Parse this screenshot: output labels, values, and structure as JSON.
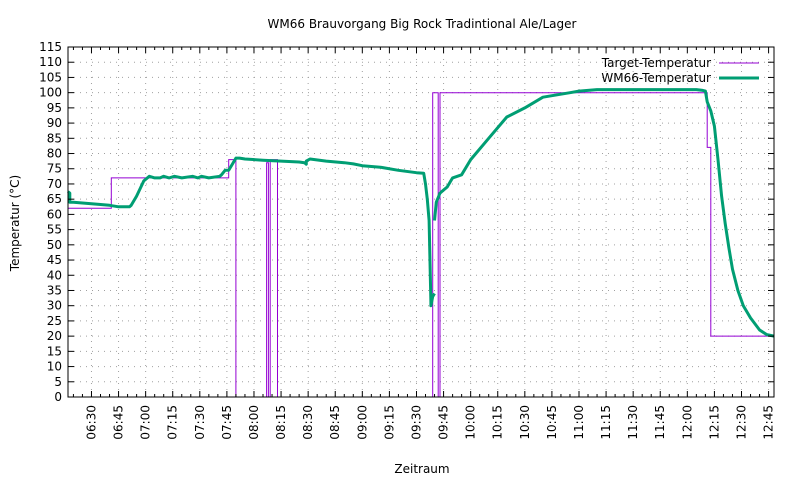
{
  "chart_data": {
    "type": "line",
    "title": "WM66 Brauvorgang Big Rock Tradintional Ale/Lager",
    "xlabel": "Zeitraum",
    "ylabel": "Temperatur (°C)",
    "ylim": [
      0,
      115
    ],
    "yticks": [
      0,
      5,
      10,
      15,
      20,
      25,
      30,
      35,
      40,
      45,
      50,
      55,
      60,
      65,
      70,
      75,
      80,
      85,
      90,
      95,
      100,
      105,
      110,
      115
    ],
    "xlim": [
      "06:17",
      "12:48"
    ],
    "xticks": [
      "06:30",
      "06:45",
      "07:00",
      "07:15",
      "07:30",
      "07:45",
      "08:00",
      "08:15",
      "08:30",
      "08:45",
      "09:00",
      "09:15",
      "09:30",
      "09:45",
      "10:00",
      "10:15",
      "10:30",
      "10:45",
      "11:00",
      "11:15",
      "11:30",
      "11:45",
      "12:00",
      "12:15",
      "12:30",
      "12:45"
    ],
    "grid": true,
    "legend": "top-right",
    "series": [
      {
        "name": "Target-Temperatur",
        "color": "#9400d3",
        "style": "step",
        "points": [
          [
            "06:17",
            62
          ],
          [
            "06:41",
            62
          ],
          [
            "06:41",
            72
          ],
          [
            "07:46",
            72
          ],
          [
            "07:46",
            78
          ],
          [
            "07:50",
            78
          ],
          [
            "07:50",
            0
          ],
          [
            "08:07",
            0
          ],
          [
            "08:07",
            77
          ],
          [
            "08:08",
            77
          ],
          [
            "08:08",
            0
          ],
          [
            "08:09",
            0
          ],
          [
            "08:09",
            78
          ],
          [
            "08:13",
            78
          ],
          [
            "08:13",
            0
          ],
          [
            "09:39",
            0
          ],
          [
            "09:39",
            100
          ],
          [
            "09:42",
            100
          ],
          [
            "09:42",
            0
          ],
          [
            "09:43",
            0
          ],
          [
            "09:43",
            100
          ],
          [
            "12:11",
            100
          ],
          [
            "12:11",
            82
          ],
          [
            "12:13",
            82
          ],
          [
            "12:13",
            20
          ],
          [
            "12:48",
            20
          ]
        ]
      },
      {
        "name": "WM66-Temperatur",
        "color": "#009e73",
        "style": "line",
        "points": [
          [
            "06:17",
            67.5
          ],
          [
            "06:18",
            67
          ],
          [
            "06:18",
            64
          ],
          [
            "06:20",
            64
          ],
          [
            "06:30",
            63.5
          ],
          [
            "06:40",
            63
          ],
          [
            "06:45",
            62.5
          ],
          [
            "06:51",
            62.5
          ],
          [
            "06:52",
            63
          ],
          [
            "06:55",
            66
          ],
          [
            "06:59",
            71
          ],
          [
            "07:02",
            72.5
          ],
          [
            "07:05",
            72
          ],
          [
            "07:08",
            72
          ],
          [
            "07:10",
            72.5
          ],
          [
            "07:13",
            72
          ],
          [
            "07:16",
            72.5
          ],
          [
            "07:20",
            72
          ],
          [
            "07:26",
            72.5
          ],
          [
            "07:29",
            72
          ],
          [
            "07:31",
            72.5
          ],
          [
            "07:35",
            72
          ],
          [
            "07:41",
            72.5
          ],
          [
            "07:42",
            73
          ],
          [
            "07:44",
            74.5
          ],
          [
            "07:46",
            74.5
          ],
          [
            "07:48",
            76.5
          ],
          [
            "07:50",
            78.5
          ],
          [
            "07:52",
            78.5
          ],
          [
            "07:55",
            78.2
          ],
          [
            "08:05",
            77.8
          ],
          [
            "08:15",
            77.5
          ],
          [
            "08:25",
            77.2
          ],
          [
            "08:28",
            77
          ],
          [
            "08:29",
            76.5
          ],
          [
            "08:29",
            77.5
          ],
          [
            "08:31",
            78.2
          ],
          [
            "08:40",
            77.5
          ],
          [
            "08:50",
            77
          ],
          [
            "08:55",
            76.6
          ],
          [
            "09:00",
            76
          ],
          [
            "09:10",
            75.5
          ],
          [
            "09:20",
            74.5
          ],
          [
            "09:30",
            73.7
          ],
          [
            "09:34",
            73.5
          ],
          [
            "09:35",
            70
          ],
          [
            "09:36",
            65
          ],
          [
            "09:37",
            58
          ],
          [
            "09:38",
            31
          ],
          [
            "09:38",
            30
          ],
          [
            "09:39",
            33
          ],
          [
            "09:40",
            34
          ],
          [
            "09:40",
            58
          ],
          [
            "09:41",
            64
          ],
          [
            "09:43",
            67
          ],
          [
            "09:45",
            68
          ],
          [
            "09:47",
            69
          ],
          [
            "09:49",
            71
          ],
          [
            "09:50",
            72
          ],
          [
            "09:55",
            73
          ],
          [
            "10:00",
            78
          ],
          [
            "10:10",
            85
          ],
          [
            "10:20",
            92
          ],
          [
            "10:30",
            95
          ],
          [
            "10:40",
            98.5
          ],
          [
            "10:45",
            99
          ],
          [
            "10:50",
            99.5
          ],
          [
            "10:55",
            100
          ],
          [
            "11:00",
            100.5
          ],
          [
            "11:10",
            101
          ],
          [
            "11:20",
            101
          ],
          [
            "11:40",
            101
          ],
          [
            "12:05",
            101
          ],
          [
            "12:08",
            100.8
          ],
          [
            "12:10",
            100.5
          ],
          [
            "12:11",
            97
          ],
          [
            "12:13",
            94
          ],
          [
            "12:15",
            89
          ],
          [
            "12:17",
            78
          ],
          [
            "12:19",
            66
          ],
          [
            "12:21",
            57
          ],
          [
            "12:23",
            49
          ],
          [
            "12:25",
            42
          ],
          [
            "12:28",
            35
          ],
          [
            "12:31",
            30
          ],
          [
            "12:35",
            26
          ],
          [
            "12:40",
            22
          ],
          [
            "12:44",
            20.5
          ],
          [
            "12:48",
            20
          ]
        ],
        "gaps_after": [
          "09:40"
        ],
        "resume_at": "09:44",
        "segment_before_gap_end": "09:40"
      }
    ]
  }
}
